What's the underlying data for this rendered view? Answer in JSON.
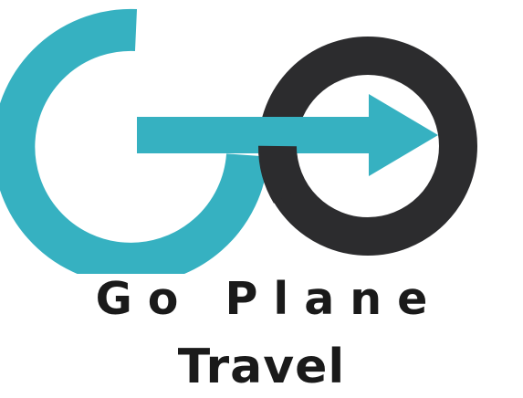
{
  "brand": {
    "line1": "Go Plane",
    "line2": "Travel"
  },
  "colors": {
    "teal": "#36b1c1",
    "dark": "#2c2c2e",
    "text": "#1a1a1a",
    "background": "#ffffff"
  },
  "logo": {
    "icon": "go-arrow-logo-icon"
  }
}
